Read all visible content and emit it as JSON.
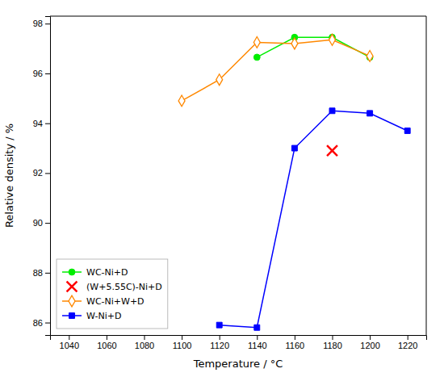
{
  "chart_data": {
    "type": "line",
    "xlabel": "Temperature / °C",
    "ylabel": "Relative density / %",
    "xlim": [
      1030,
      1230
    ],
    "ylim": [
      85.5,
      98.3
    ],
    "xticks": [
      1040,
      1060,
      1080,
      1100,
      1120,
      1140,
      1160,
      1180,
      1200,
      1220
    ],
    "yticks": [
      86,
      88,
      90,
      92,
      94,
      96,
      98
    ],
    "grid": false,
    "legend": "lower left",
    "series": [
      {
        "name": "WC-Ni+D",
        "color": "#00ee00",
        "marker": "circle",
        "line_style": "solid",
        "x": [
          1140,
          1160,
          1180,
          1200
        ],
        "values": [
          96.65,
          97.45,
          97.45,
          96.65
        ]
      },
      {
        "name": "(W+5.55C)-Ni+D",
        "color": "#ff0000",
        "marker": "x",
        "line_style": "none",
        "x": [
          1180
        ],
        "values": [
          92.9
        ]
      },
      {
        "name": "WC-Ni+W+D",
        "color": "#ff8800",
        "marker": "open-diamond",
        "line_style": "solid",
        "x": [
          1100,
          1120,
          1140,
          1160,
          1180,
          1200
        ],
        "values": [
          94.9,
          95.75,
          97.25,
          97.2,
          97.35,
          96.7
        ]
      },
      {
        "name": "W-Ni+D",
        "color": "#0000ff",
        "marker": "square",
        "line_style": "solid",
        "x": [
          1120,
          1140,
          1160,
          1180,
          1200,
          1220
        ],
        "values": [
          85.9,
          85.8,
          93.0,
          94.5,
          94.4,
          93.7
        ]
      }
    ]
  }
}
